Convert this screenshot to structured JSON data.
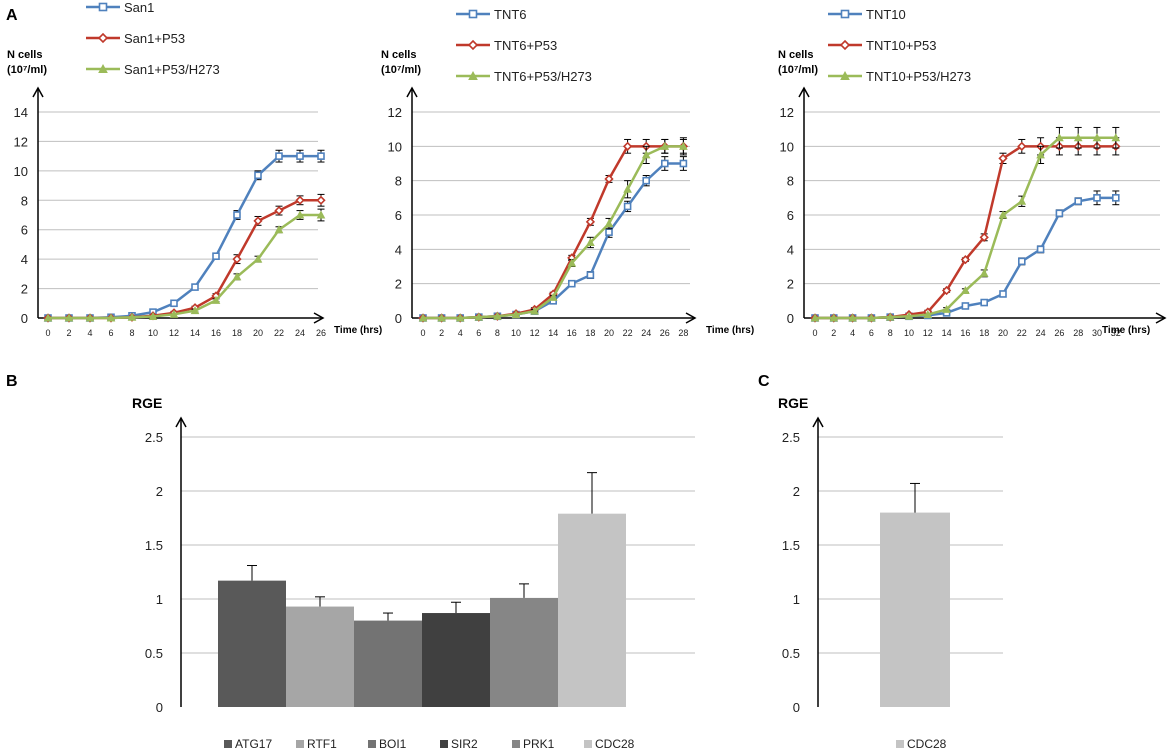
{
  "panel_labels": [
    "A",
    "B",
    "C"
  ],
  "colors": {
    "blue": "#4F81BD",
    "red": "#C0392B",
    "green": "#9BBB59",
    "axis": "#000000",
    "grid": "#BFBFBF"
  },
  "chart_data": [
    {
      "id": "A1",
      "type": "line",
      "ylabel_line1": "N cells",
      "ylabel_line2": "(10⁷/ml)",
      "xlabel": "Time (hrs)",
      "ylim": [
        0,
        14
      ],
      "yticks": [
        0,
        2,
        4,
        6,
        8,
        10,
        12,
        14
      ],
      "x": [
        0,
        2,
        4,
        6,
        8,
        10,
        12,
        14,
        16,
        18,
        20,
        22,
        24,
        26
      ],
      "series": [
        {
          "name": "San1",
          "color": "#4F81BD",
          "marker": "square",
          "values": [
            0,
            0,
            0,
            0.05,
            0.15,
            0.4,
            1.0,
            2.1,
            4.2,
            7.0,
            9.7,
            11.0,
            11.0,
            11.0
          ],
          "errors": [
            0,
            0,
            0,
            0,
            0,
            0.1,
            0.1,
            0.1,
            0.15,
            0.3,
            0.3,
            0.4,
            0.4,
            0.4
          ]
        },
        {
          "name": "San1+P53",
          "color": "#C0392B",
          "marker": "diamond",
          "values": [
            0,
            0,
            0,
            0,
            0.05,
            0.15,
            0.35,
            0.7,
            1.5,
            4.0,
            6.6,
            7.3,
            8.0,
            8.0
          ],
          "errors": [
            0,
            0,
            0,
            0,
            0,
            0,
            0.1,
            0.1,
            0.15,
            0.3,
            0.3,
            0.3,
            0.3,
            0.4
          ]
        },
        {
          "name": "San1+P53/H273",
          "color": "#9BBB59",
          "marker": "triangle",
          "values": [
            0,
            0,
            0,
            0,
            0.05,
            0.1,
            0.25,
            0.5,
            1.2,
            2.8,
            4.0,
            6.0,
            7.0,
            7.0
          ],
          "errors": [
            0,
            0,
            0,
            0,
            0,
            0,
            0,
            0.1,
            0.1,
            0.2,
            0.2,
            0.2,
            0.3,
            0.4
          ]
        }
      ]
    },
    {
      "id": "A2",
      "type": "line",
      "ylabel_line1": "N cells",
      "ylabel_line2": "(10⁷/ml)",
      "xlabel": "Time (hrs)",
      "ylim": [
        0,
        12
      ],
      "yticks": [
        0,
        2,
        4,
        6,
        8,
        10,
        12
      ],
      "x": [
        0,
        2,
        4,
        6,
        8,
        10,
        12,
        14,
        16,
        18,
        20,
        22,
        24,
        26,
        28
      ],
      "series": [
        {
          "name": "TNT6",
          "color": "#4F81BD",
          "marker": "square",
          "values": [
            0,
            0,
            0,
            0.05,
            0.1,
            0.2,
            0.4,
            1.0,
            2.0,
            2.5,
            5.0,
            6.5,
            8.0,
            9.0,
            9.0
          ],
          "errors": [
            0,
            0,
            0,
            0,
            0,
            0,
            0.1,
            0.1,
            0.1,
            0.2,
            0.3,
            0.3,
            0.3,
            0.4,
            0.4
          ]
        },
        {
          "name": "TNT6+P53",
          "color": "#C0392B",
          "marker": "diamond",
          "values": [
            0,
            0,
            0,
            0.05,
            0.1,
            0.25,
            0.5,
            1.4,
            3.5,
            5.6,
            8.1,
            10.0,
            10.0,
            10.0,
            10.0
          ],
          "errors": [
            0,
            0,
            0,
            0,
            0,
            0,
            0.1,
            0.1,
            0.15,
            0.2,
            0.2,
            0.4,
            0.4,
            0.4,
            0.4
          ]
        },
        {
          "name": "TNT6+P53/H273",
          "color": "#9BBB59",
          "marker": "triangle",
          "values": [
            0,
            0,
            0,
            0.05,
            0.1,
            0.2,
            0.4,
            1.2,
            3.2,
            4.4,
            5.5,
            7.5,
            9.5,
            10.0,
            10.0
          ],
          "errors": [
            0,
            0,
            0,
            0,
            0,
            0,
            0.1,
            0.1,
            0.2,
            0.3,
            0.3,
            0.5,
            0.5,
            0.4,
            0.5
          ]
        }
      ]
    },
    {
      "id": "A3",
      "type": "line",
      "ylabel_line1": "N cells",
      "ylabel_line2": "(10⁷/ml)",
      "xlabel": "Time (hrs)",
      "ylim": [
        0,
        12
      ],
      "yticks": [
        0,
        2,
        4,
        6,
        8,
        10,
        12
      ],
      "x": [
        0,
        2,
        4,
        6,
        8,
        10,
        12,
        14,
        16,
        18,
        20,
        22,
        24,
        26,
        28,
        30,
        32
      ],
      "series": [
        {
          "name": "TNT10",
          "color": "#4F81BD",
          "marker": "square",
          "values": [
            0,
            0,
            0,
            0,
            0.05,
            0.1,
            0.15,
            0.3,
            0.7,
            0.9,
            1.4,
            3.3,
            4.0,
            6.1,
            6.8,
            7.0,
            7.0
          ],
          "errors": [
            0,
            0,
            0,
            0,
            0,
            0,
            0,
            0.05,
            0.1,
            0.1,
            0.1,
            0.2,
            0.2,
            0.2,
            0.2,
            0.4,
            0.4
          ]
        },
        {
          "name": "TNT10+P53",
          "color": "#C0392B",
          "marker": "diamond",
          "values": [
            0,
            0,
            0,
            0,
            0.05,
            0.2,
            0.35,
            1.6,
            3.4,
            4.7,
            9.3,
            10.0,
            10.0,
            10.0,
            10.0,
            10.0,
            10.0
          ],
          "errors": [
            0,
            0,
            0,
            0,
            0,
            0,
            0.1,
            0.1,
            0.1,
            0.2,
            0.3,
            0.4,
            0.5,
            0.5,
            0.5,
            0.5,
            0.5
          ]
        },
        {
          "name": "TNT10+P53/H273",
          "color": "#9BBB59",
          "marker": "triangle",
          "values": [
            0,
            0,
            0,
            0,
            0.05,
            0.1,
            0.2,
            0.5,
            1.6,
            2.6,
            6.0,
            6.8,
            9.5,
            10.5,
            10.5,
            10.5,
            10.5
          ],
          "errors": [
            0,
            0,
            0,
            0,
            0,
            0,
            0,
            0.1,
            0.1,
            0.2,
            0.2,
            0.3,
            0.5,
            0.6,
            0.6,
            0.6,
            0.6
          ]
        }
      ]
    },
    {
      "id": "B",
      "type": "bar",
      "ylabel": "RGE",
      "ylim": [
        0,
        2.5
      ],
      "yticks": [
        0,
        0.5,
        1,
        1.5,
        2,
        2.5
      ],
      "categories": [
        "ATG17",
        "RTF1",
        "BOI1",
        "SIR2",
        "PRK1",
        "CDC28"
      ],
      "values": [
        1.17,
        0.93,
        0.8,
        0.87,
        1.01,
        1.79
      ],
      "errors": [
        0.14,
        0.09,
        0.07,
        0.1,
        0.13,
        0.38
      ],
      "bar_colors": [
        "#595959",
        "#A6A6A6",
        "#737373",
        "#404040",
        "#868686",
        "#C4C4C4"
      ]
    },
    {
      "id": "C",
      "type": "bar",
      "ylabel": "RGE",
      "ylim": [
        0,
        2.5
      ],
      "yticks": [
        0,
        0.5,
        1,
        1.5,
        2,
        2.5
      ],
      "categories": [
        "CDC28"
      ],
      "values": [
        1.8
      ],
      "errors": [
        0.27
      ],
      "bar_colors": [
        "#C4C4C4"
      ]
    }
  ]
}
